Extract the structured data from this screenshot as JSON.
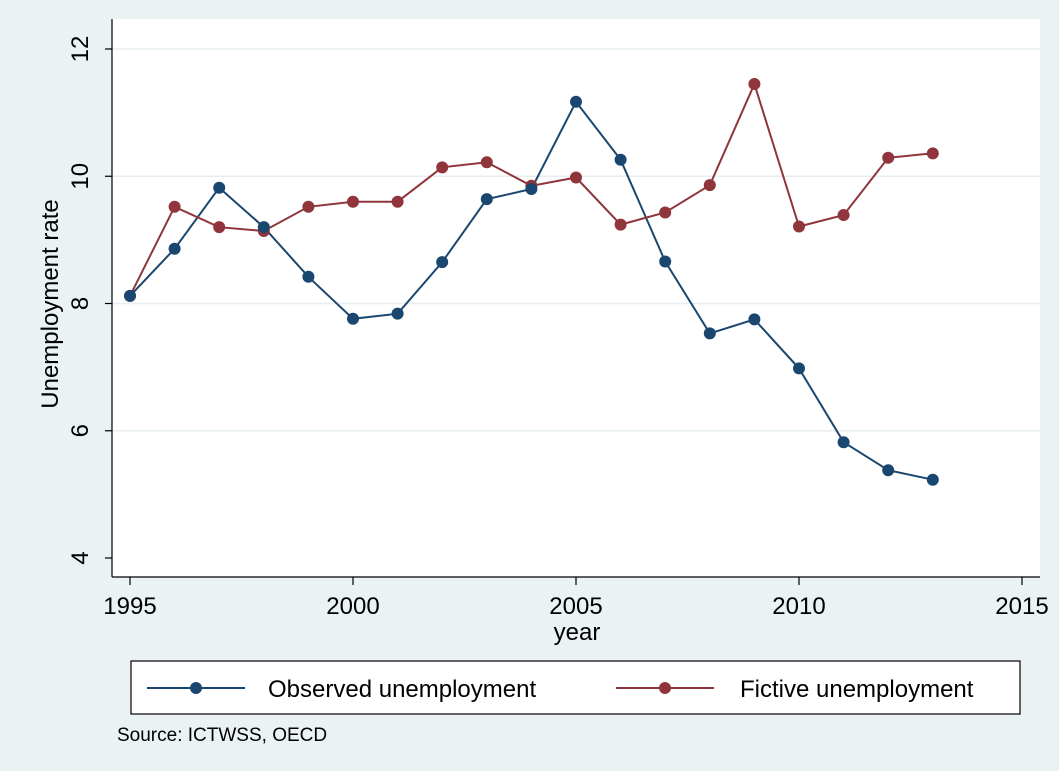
{
  "chart_data": {
    "type": "line",
    "title": "",
    "xlabel": "year",
    "ylabel": "Unemployment rate",
    "xlim": [
      1995,
      2015
    ],
    "ylim": [
      4,
      12
    ],
    "x_ticks": [
      "1995",
      "2000",
      "2005",
      "2010",
      "2015"
    ],
    "y_ticks": [
      "4",
      "6",
      "8",
      "10",
      "12"
    ],
    "grid": "horizontal",
    "legend_position": "bottom",
    "note": "Source: ICTWSS, OECD",
    "x": [
      1995,
      1996,
      1997,
      1998,
      1999,
      2000,
      2001,
      2002,
      2003,
      2004,
      2005,
      2006,
      2007,
      2008,
      2009,
      2010,
      2011,
      2012,
      2013
    ],
    "series": [
      {
        "name": "Observed unemployment",
        "color": "#1a476f",
        "values": [
          8.12,
          8.86,
          9.82,
          9.2,
          8.42,
          7.76,
          7.84,
          8.65,
          9.64,
          9.8,
          11.17,
          10.26,
          8.66,
          7.53,
          7.75,
          6.98,
          5.82,
          5.38,
          5.23
        ]
      },
      {
        "name": "Fictive unemployment",
        "color": "#90353b",
        "values": [
          8.12,
          9.52,
          9.2,
          9.14,
          9.52,
          9.6,
          9.6,
          10.14,
          10.22,
          9.85,
          9.98,
          9.24,
          9.43,
          9.86,
          11.45,
          9.21,
          9.39,
          10.29,
          10.36
        ]
      }
    ]
  }
}
